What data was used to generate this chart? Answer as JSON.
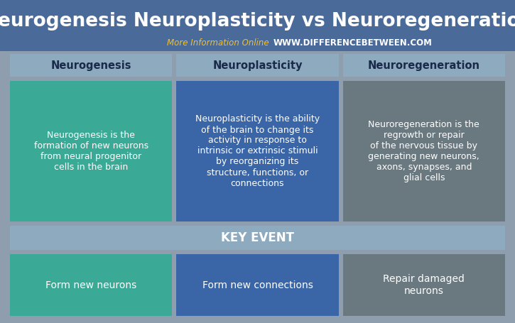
{
  "title": "Neurogenesis Neuroplasticity vs Neuroregeneration",
  "subtitle_plain": "More Information Online ",
  "subtitle_url": "WWW.DIFFERENCEBETWEEN.COM",
  "bg_dark": "#4a6b9a",
  "bg_gray": "#8e9eae",
  "header_bg": "#8eaabe",
  "key_event_bg": "#8eaabe",
  "columns": [
    "Neurogenesis",
    "Neuroplasticity",
    "Neuroregeneration"
  ],
  "col_header_color": "#8eaabe",
  "col_box_colors": [
    "#3aaa96",
    "#3a66a8",
    "#6a7880"
  ],
  "definitions": [
    "Neurogenesis is the\nformation of new neurons\nfrom neural progenitor\ncells in the brain",
    "Neuroplasticity is the ability\nof the brain to change its\nactivity in response to\nintrinsic or extrinsic stimuli\nby reorganizing its\nstructure, functions, or\nconnections",
    "Neuroregeneration is the\nregrowth or repair\nof the nervous tissue by\ngenerating new neurons,\naxons, synapses, and\nglial cells"
  ],
  "key_event_label": "KEY EVENT",
  "key_events": [
    "Form new neurons",
    "Form new connections",
    "Repair damaged\nneurons"
  ],
  "title_color": "#ffffff",
  "title_fontsize": 19,
  "subtitle_plain_color": "#f0c030",
  "subtitle_url_color": "#ffffff",
  "header_text_color": "#1a2a4a",
  "def_text_color": "#ffffff",
  "key_event_text_color": "#ffffff",
  "key_event_label_color": "#ffffff"
}
